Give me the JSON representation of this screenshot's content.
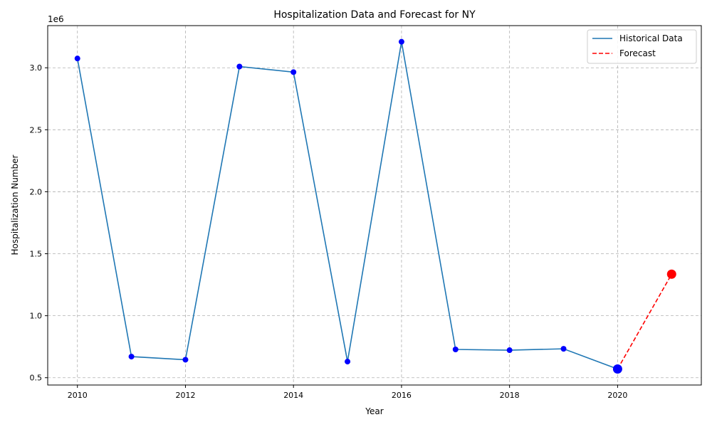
{
  "chart_data": {
    "type": "line",
    "title": "Hospitalization Data and Forecast for NY",
    "xlabel": "Year",
    "ylabel": "Hospitalization Number",
    "y_offset_label": "1e6",
    "xlim": [
      2009.45,
      2021.55
    ],
    "ylim": [
      441000,
      3340000
    ],
    "x_ticks": [
      2010,
      2012,
      2014,
      2016,
      2018,
      2020
    ],
    "x_tick_labels": [
      "2010",
      "2012",
      "2014",
      "2016",
      "2018",
      "2020"
    ],
    "y_ticks": [
      500000,
      1000000,
      1500000,
      2000000,
      2500000,
      3000000
    ],
    "y_tick_labels": [
      "0.5",
      "1.0",
      "1.5",
      "2.0",
      "2.5",
      "3.0"
    ],
    "grid": true,
    "legend_position": "top-right",
    "series": [
      {
        "name": "Historical Data",
        "color": "#1f77b4",
        "marker_color": "#0000ff",
        "style": "solid",
        "x": [
          2010,
          2011,
          2012,
          2013,
          2014,
          2015,
          2016,
          2017,
          2018,
          2019,
          2020
        ],
        "y": [
          3075000,
          670000,
          645000,
          3010000,
          2965000,
          630000,
          3210000,
          728000,
          722000,
          733000,
          570000
        ]
      },
      {
        "name": "Forecast",
        "color": "#ff0000",
        "marker_color": "#ff0000",
        "style": "dashed",
        "x": [
          2020,
          2021
        ],
        "y": [
          570000,
          1335000
        ]
      }
    ],
    "highlighted_points": [
      {
        "x": 2020,
        "y": 570000,
        "color": "#0000ff"
      },
      {
        "x": 2021,
        "y": 1335000,
        "color": "#ff0000"
      }
    ]
  }
}
